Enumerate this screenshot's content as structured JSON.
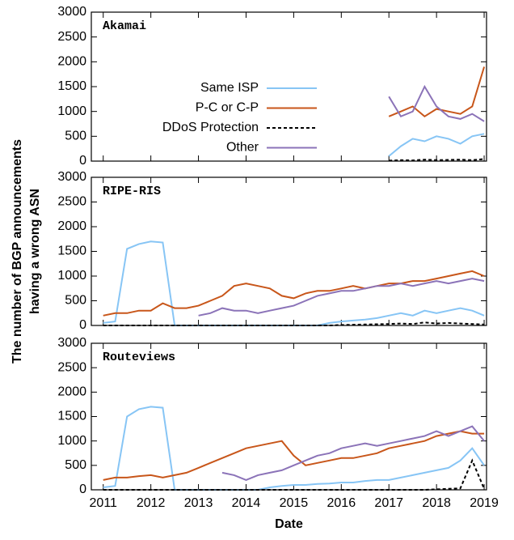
{
  "chart_data": [
    {
      "type": "line",
      "title": "Akamai",
      "x": [
        2011,
        2011.25,
        2011.5,
        2011.75,
        2012,
        2012.25,
        2012.5,
        2012.75,
        2013,
        2013.25,
        2013.5,
        2013.75,
        2014,
        2014.25,
        2014.5,
        2014.75,
        2015,
        2015.25,
        2015.5,
        2015.75,
        2016,
        2016.25,
        2016.5,
        2016.75,
        2017,
        2017.25,
        2017.5,
        2017.75,
        2018,
        2018.25,
        2018.5,
        2018.75,
        2019
      ],
      "series": [
        {
          "name": "Same ISP",
          "color": "#87c5f5",
          "style": "solid",
          "values": [
            null,
            null,
            null,
            null,
            null,
            null,
            null,
            null,
            null,
            null,
            null,
            null,
            null,
            null,
            null,
            null,
            null,
            null,
            null,
            null,
            null,
            null,
            null,
            null,
            100,
            300,
            450,
            400,
            500,
            450,
            350,
            500,
            550
          ]
        },
        {
          "name": "P-C or C-P",
          "color": "#c8561a",
          "style": "solid",
          "values": [
            null,
            null,
            null,
            null,
            null,
            null,
            null,
            null,
            null,
            null,
            null,
            null,
            null,
            null,
            null,
            null,
            null,
            null,
            null,
            null,
            null,
            null,
            null,
            null,
            900,
            1000,
            1100,
            900,
            1050,
            1000,
            950,
            1100,
            1900
          ]
        },
        {
          "name": "DDoS Protection",
          "color": "#000000",
          "style": "dashed",
          "values": [
            null,
            null,
            null,
            null,
            null,
            null,
            null,
            null,
            null,
            null,
            null,
            null,
            null,
            null,
            null,
            null,
            null,
            null,
            null,
            null,
            null,
            null,
            null,
            null,
            10,
            20,
            15,
            30,
            20,
            25,
            30,
            20,
            40
          ]
        },
        {
          "name": "Other",
          "color": "#8b73b8",
          "style": "solid",
          "values": [
            null,
            null,
            null,
            null,
            null,
            null,
            null,
            null,
            null,
            null,
            null,
            null,
            null,
            null,
            null,
            null,
            null,
            null,
            null,
            null,
            null,
            null,
            null,
            null,
            1300,
            900,
            1000,
            1500,
            1100,
            900,
            850,
            950,
            800
          ]
        }
      ],
      "xlim": [
        2010.75,
        2019.05
      ],
      "xticks": [
        2011,
        2012,
        2013,
        2014,
        2015,
        2016,
        2017,
        2018,
        2019
      ],
      "ylim": [
        0,
        3000
      ],
      "yticks": [
        0,
        500,
        1000,
        1500,
        2000,
        2500,
        3000
      ],
      "legend": "center-left"
    },
    {
      "type": "line",
      "title": "RIPE-RIS",
      "ylabel": [
        "The number of BGP announcements",
        "having a wrong ASN"
      ],
      "x": [
        2011,
        2011.25,
        2011.5,
        2011.75,
        2012,
        2012.25,
        2012.5,
        2012.75,
        2013,
        2013.25,
        2013.5,
        2013.75,
        2014,
        2014.25,
        2014.5,
        2014.75,
        2015,
        2015.25,
        2015.5,
        2015.75,
        2016,
        2016.25,
        2016.5,
        2016.75,
        2017,
        2017.25,
        2017.5,
        2017.75,
        2018,
        2018.25,
        2018.5,
        2018.75,
        2019
      ],
      "series": [
        {
          "color": "#87c5f5",
          "style": "solid",
          "values": [
            50,
            80,
            1550,
            1650,
            1700,
            1680,
            0,
            0,
            0,
            0,
            0,
            0,
            0,
            0,
            0,
            0,
            0,
            0,
            0,
            50,
            80,
            100,
            120,
            150,
            200,
            250,
            200,
            300,
            250,
            300,
            350,
            300,
            200
          ]
        },
        {
          "color": "#c8561a",
          "style": "solid",
          "values": [
            200,
            250,
            250,
            300,
            300,
            450,
            350,
            350,
            400,
            500,
            600,
            800,
            850,
            800,
            750,
            600,
            550,
            650,
            700,
            700,
            750,
            800,
            750,
            800,
            850,
            850,
            900,
            900,
            950,
            1000,
            1050,
            1100,
            1000
          ]
        },
        {
          "color": "#000000",
          "style": "dashed",
          "values": [
            0,
            0,
            0,
            0,
            0,
            0,
            0,
            0,
            0,
            0,
            0,
            0,
            0,
            0,
            0,
            0,
            0,
            0,
            0,
            0,
            10,
            15,
            20,
            25,
            30,
            40,
            30,
            60,
            40,
            50,
            40,
            30,
            20
          ]
        },
        {
          "color": "#8b73b8",
          "style": "solid",
          "values": [
            null,
            null,
            null,
            null,
            null,
            null,
            null,
            null,
            200,
            250,
            350,
            300,
            300,
            250,
            300,
            350,
            400,
            500,
            600,
            650,
            700,
            700,
            750,
            800,
            800,
            850,
            800,
            850,
            900,
            850,
            900,
            950,
            900
          ]
        }
      ],
      "xlim": [
        2010.75,
        2019.05
      ],
      "xticks": [
        2011,
        2012,
        2013,
        2014,
        2015,
        2016,
        2017,
        2018,
        2019
      ],
      "ylim": [
        0,
        3000
      ],
      "yticks": [
        0,
        500,
        1000,
        1500,
        2000,
        2500,
        3000
      ]
    },
    {
      "type": "line",
      "title": "Routeviews",
      "xlabel": "Date",
      "x": [
        2011,
        2011.25,
        2011.5,
        2011.75,
        2012,
        2012.25,
        2012.5,
        2012.75,
        2013,
        2013.25,
        2013.5,
        2013.75,
        2014,
        2014.25,
        2014.5,
        2014.75,
        2015,
        2015.25,
        2015.5,
        2015.75,
        2016,
        2016.25,
        2016.5,
        2016.75,
        2017,
        2017.25,
        2017.5,
        2017.75,
        2018,
        2018.25,
        2018.5,
        2018.75,
        2019
      ],
      "series": [
        {
          "color": "#87c5f5",
          "style": "solid",
          "values": [
            50,
            80,
            1500,
            1650,
            1700,
            1680,
            0,
            0,
            0,
            0,
            0,
            0,
            0,
            0,
            50,
            80,
            100,
            100,
            120,
            130,
            150,
            150,
            180,
            200,
            200,
            250,
            300,
            350,
            400,
            450,
            600,
            850,
            500
          ]
        },
        {
          "color": "#c8561a",
          "style": "solid",
          "values": [
            200,
            250,
            250,
            280,
            300,
            250,
            300,
            350,
            450,
            550,
            650,
            750,
            850,
            900,
            950,
            1000,
            700,
            500,
            550,
            600,
            650,
            650,
            700,
            750,
            850,
            900,
            950,
            1000,
            1100,
            1150,
            1200,
            1150,
            1150
          ]
        },
        {
          "color": "#000000",
          "style": "dashed",
          "values": [
            0,
            0,
            0,
            0,
            0,
            0,
            0,
            0,
            0,
            0,
            0,
            0,
            0,
            0,
            0,
            0,
            0,
            0,
            0,
            0,
            0,
            0,
            0,
            0,
            0,
            0,
            0,
            0,
            10,
            20,
            30,
            600,
            20
          ]
        },
        {
          "color": "#8b73b8",
          "style": "solid",
          "values": [
            null,
            null,
            null,
            null,
            null,
            null,
            null,
            null,
            null,
            null,
            350,
            300,
            200,
            300,
            350,
            400,
            500,
            600,
            700,
            750,
            850,
            900,
            950,
            900,
            950,
            1000,
            1050,
            1100,
            1200,
            1100,
            1200,
            1300,
            1000
          ]
        }
      ],
      "xlim": [
        2010.75,
        2019.05
      ],
      "xticks": [
        2011,
        2012,
        2013,
        2014,
        2015,
        2016,
        2017,
        2018,
        2019
      ],
      "ylim": [
        0,
        3000
      ],
      "yticks": [
        0,
        500,
        1000,
        1500,
        2000,
        2500,
        3000
      ]
    }
  ]
}
